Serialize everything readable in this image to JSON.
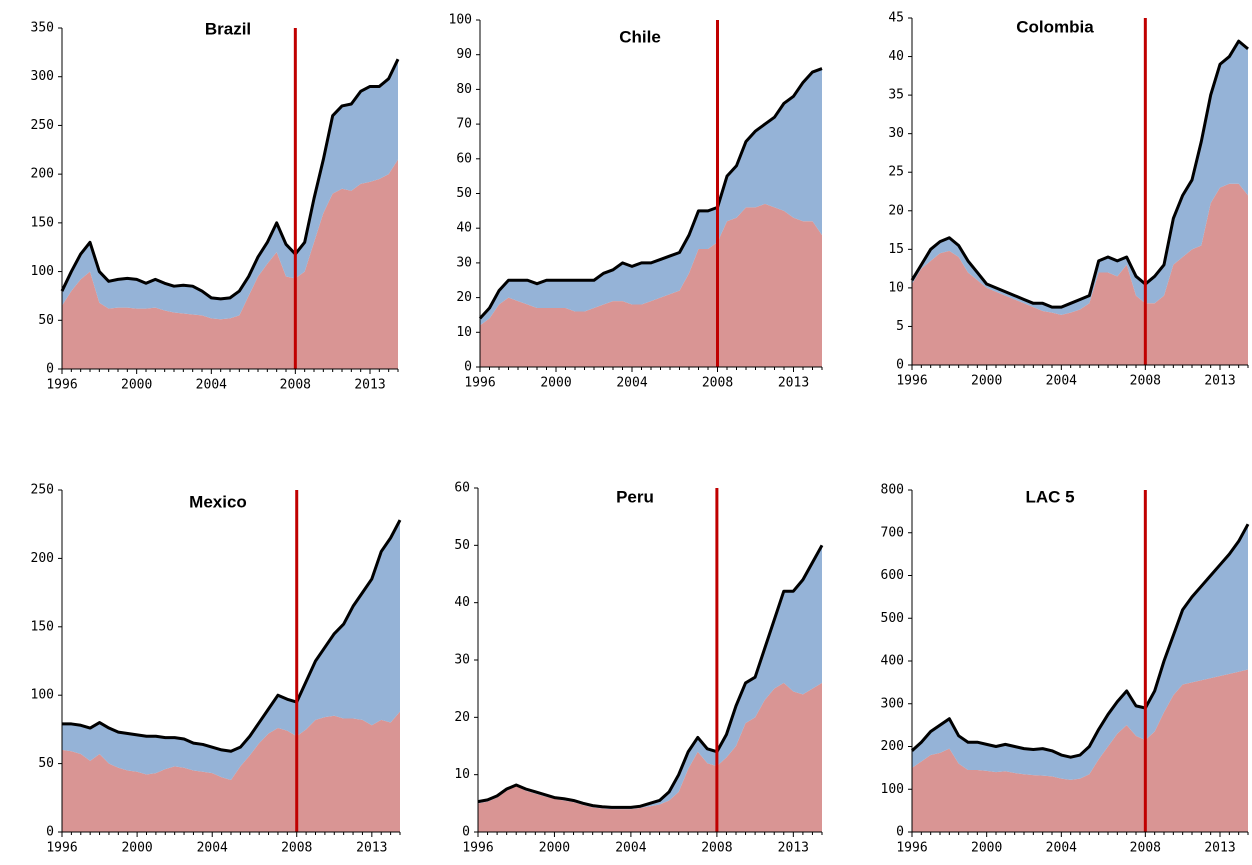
{
  "chart_data": [
    {
      "type": "area",
      "stacked": true,
      "title": "Brazil",
      "categories": [
        "1996",
        null,
        null,
        null,
        null,
        null,
        null,
        null,
        "2000",
        null,
        null,
        null,
        null,
        null,
        null,
        null,
        "2004",
        null,
        null,
        null,
        null,
        null,
        null,
        null,
        null,
        "2008",
        null,
        null,
        null,
        null,
        null,
        null,
        null,
        "2013",
        null,
        null,
        null
      ],
      "series": [
        {
          "color": "#d99594",
          "values": [
            65,
            80,
            92,
            100,
            68,
            62,
            63,
            63,
            62,
            62,
            63,
            60,
            58,
            57,
            56,
            55,
            52,
            51,
            52,
            55,
            75,
            95,
            108,
            120,
            95,
            93,
            100,
            130,
            160,
            180,
            185,
            183,
            190,
            192,
            195,
            200,
            215
          ]
        },
        {
          "color": "#95b3d7",
          "values": [
            15,
            20,
            26,
            30,
            32,
            28,
            29,
            30,
            30,
            26,
            29,
            28,
            27,
            29,
            29,
            25,
            21,
            21,
            21,
            25,
            20,
            20,
            22,
            30,
            33,
            25,
            30,
            45,
            55,
            80,
            85,
            89,
            95,
            98,
            95,
            98,
            103
          ]
        }
      ],
      "ylim": [
        0,
        350
      ],
      "yticks": [
        0,
        50,
        100,
        150,
        200,
        250,
        300,
        350
      ],
      "total_line_color": "#000000",
      "reference_line": {
        "category": "2008",
        "color": "#c00000"
      }
    },
    {
      "type": "area",
      "stacked": true,
      "title": "Chile",
      "categories": [
        "1996",
        null,
        null,
        null,
        null,
        null,
        null,
        null,
        "2000",
        null,
        null,
        null,
        null,
        null,
        null,
        null,
        "2004",
        null,
        null,
        null,
        null,
        null,
        null,
        null,
        null,
        "2008",
        null,
        null,
        null,
        null,
        null,
        null,
        null,
        "2013",
        null,
        null,
        null
      ],
      "series": [
        {
          "color": "#d99594",
          "values": [
            12,
            14,
            18,
            20,
            19,
            18,
            17,
            17,
            17,
            17,
            16,
            16,
            17,
            18,
            19,
            19,
            18,
            18,
            19,
            20,
            21,
            22,
            27,
            34,
            34,
            36,
            42,
            43,
            46,
            46,
            47,
            46,
            45,
            43,
            42,
            42,
            38
          ]
        },
        {
          "color": "#95b3d7",
          "values": [
            2,
            3,
            4,
            5,
            6,
            7,
            7,
            8,
            8,
            8,
            9,
            9,
            8,
            9,
            9,
            11,
            11,
            12,
            11,
            11,
            11,
            11,
            11,
            11,
            11,
            10,
            13,
            15,
            19,
            22,
            23,
            26,
            31,
            35,
            40,
            43,
            48
          ]
        }
      ],
      "ylim": [
        0,
        100
      ],
      "yticks": [
        0,
        10,
        20,
        30,
        40,
        50,
        60,
        70,
        80,
        90,
        100
      ],
      "total_line_color": "#000000",
      "reference_line": {
        "category": "2008",
        "color": "#c00000"
      }
    },
    {
      "type": "area",
      "stacked": true,
      "title": "Colombia",
      "categories": [
        "1996",
        null,
        null,
        null,
        null,
        null,
        null,
        null,
        "2000",
        null,
        null,
        null,
        null,
        null,
        null,
        null,
        "2004",
        null,
        null,
        null,
        null,
        null,
        null,
        null,
        null,
        "2008",
        null,
        null,
        null,
        null,
        null,
        null,
        null,
        "2013",
        null,
        null,
        null
      ],
      "series": [
        {
          "color": "#d99594",
          "values": [
            10.5,
            12.5,
            13.5,
            14.5,
            14.8,
            14,
            12,
            11,
            10,
            9.5,
            9,
            8.5,
            8,
            7.5,
            7,
            6.8,
            6.5,
            6.8,
            7.2,
            8,
            12,
            12,
            11.5,
            13,
            9,
            8,
            8,
            9,
            13,
            14,
            15,
            15.5,
            21,
            23,
            23.5,
            23.5,
            22
          ]
        },
        {
          "color": "#95b3d7",
          "values": [
            0.5,
            0.5,
            1.5,
            1.5,
            1.7,
            1.5,
            1.5,
            1,
            0.5,
            0.5,
            0.5,
            0.5,
            0.5,
            0.5,
            1,
            0.7,
            1,
            1.2,
            1.3,
            1,
            1.5,
            2,
            2,
            1,
            2.5,
            2.5,
            3.5,
            4,
            6,
            8,
            9,
            13.5,
            14,
            16,
            16.5,
            18.5,
            19
          ]
        }
      ],
      "ylim": [
        0,
        45
      ],
      "yticks": [
        0,
        5,
        10,
        15,
        20,
        25,
        30,
        35,
        40,
        45
      ],
      "total_line_color": "#000000",
      "reference_line": {
        "category": "2008",
        "color": "#c00000"
      }
    },
    {
      "type": "area",
      "stacked": true,
      "title": "Mexico",
      "categories": [
        "1996",
        null,
        null,
        null,
        null,
        null,
        null,
        null,
        "2000",
        null,
        null,
        null,
        null,
        null,
        null,
        null,
        "2004",
        null,
        null,
        null,
        null,
        null,
        null,
        null,
        null,
        "2008",
        null,
        null,
        null,
        null,
        null,
        null,
        null,
        "2013",
        null,
        null,
        null
      ],
      "series": [
        {
          "color": "#d99594",
          "values": [
            60,
            59,
            57,
            52,
            57,
            50,
            47,
            45,
            44,
            42,
            43,
            46,
            48,
            47,
            45,
            44,
            43,
            40,
            38,
            48,
            56,
            65,
            72,
            76,
            74,
            70,
            75,
            82,
            84,
            85,
            83,
            83,
            82,
            78,
            82,
            80,
            88
          ]
        },
        {
          "color": "#95b3d7",
          "values": [
            19,
            20,
            21,
            24,
            23,
            26,
            26,
            27,
            27,
            28,
            27,
            23,
            21,
            21,
            20,
            20,
            19,
            20,
            21,
            14,
            14,
            15,
            18,
            24,
            23,
            25,
            35,
            43,
            51,
            60,
            69,
            82,
            93,
            107,
            123,
            135,
            140
          ]
        }
      ],
      "ylim": [
        0,
        250
      ],
      "yticks": [
        0,
        50,
        100,
        150,
        200,
        250
      ],
      "total_line_color": "#000000",
      "reference_line": {
        "category": "2008",
        "color": "#c00000"
      }
    },
    {
      "type": "area",
      "stacked": true,
      "title": "Peru",
      "categories": [
        "1996",
        null,
        null,
        null,
        null,
        null,
        null,
        null,
        "2000",
        null,
        null,
        null,
        null,
        null,
        null,
        null,
        "2004",
        null,
        null,
        null,
        null,
        null,
        null,
        null,
        null,
        "2008",
        null,
        null,
        null,
        null,
        null,
        null,
        null,
        "2013",
        null,
        null,
        null
      ],
      "series": [
        {
          "color": "#d99594",
          "values": [
            5,
            5.3,
            6,
            7.2,
            8,
            7.2,
            6.7,
            6.2,
            5.8,
            5.5,
            5.2,
            4.7,
            4.3,
            4.1,
            4,
            4,
            4,
            4.2,
            4.5,
            4.8,
            5.5,
            7,
            11,
            14,
            12,
            11.5,
            13,
            15,
            19,
            20,
            23,
            25,
            26,
            24.5,
            24,
            25,
            26
          ]
        },
        {
          "color": "#95b3d7",
          "values": [
            0.3,
            0.3,
            0.3,
            0.3,
            0.2,
            0.3,
            0.3,
            0.3,
            0.2,
            0.3,
            0.3,
            0.3,
            0.3,
            0.3,
            0.3,
            0.3,
            0.3,
            0.3,
            0.5,
            0.7,
            1.5,
            3,
            3,
            2.5,
            2.5,
            2.5,
            4,
            7,
            7,
            7,
            9,
            12,
            16,
            17.5,
            20,
            22,
            24
          ]
        }
      ],
      "ylim": [
        0,
        60
      ],
      "yticks": [
        0,
        10,
        20,
        30,
        40,
        50,
        60
      ],
      "total_line_color": "#000000",
      "reference_line": {
        "category": "2008",
        "color": "#c00000"
      }
    },
    {
      "type": "area",
      "stacked": true,
      "title": "LAC 5",
      "categories": [
        "1996",
        null,
        null,
        null,
        null,
        null,
        null,
        null,
        "2000",
        null,
        null,
        null,
        null,
        null,
        null,
        null,
        "2004",
        null,
        null,
        null,
        null,
        null,
        null,
        null,
        null,
        "2008",
        null,
        null,
        null,
        null,
        null,
        null,
        null,
        "2013",
        null,
        null,
        null
      ],
      "series": [
        {
          "color": "#d99594",
          "values": [
            150,
            165,
            180,
            185,
            195,
            160,
            145,
            145,
            143,
            140,
            142,
            138,
            135,
            133,
            132,
            130,
            125,
            122,
            125,
            135,
            170,
            200,
            230,
            250,
            225,
            215,
            235,
            280,
            320,
            345,
            350,
            355,
            360,
            365,
            370,
            375,
            380
          ]
        },
        {
          "color": "#95b3d7",
          "values": [
            40,
            45,
            55,
            65,
            70,
            65,
            65,
            65,
            62,
            60,
            63,
            62,
            60,
            60,
            63,
            60,
            55,
            53,
            55,
            65,
            70,
            75,
            75,
            80,
            70,
            75,
            95,
            120,
            140,
            175,
            200,
            220,
            240,
            260,
            280,
            305,
            340
          ]
        }
      ],
      "ylim": [
        0,
        800
      ],
      "yticks": [
        0,
        100,
        200,
        300,
        400,
        500,
        600,
        700,
        800
      ],
      "total_line_color": "#000000",
      "reference_line": {
        "category": "2008",
        "color": "#c00000"
      }
    }
  ]
}
